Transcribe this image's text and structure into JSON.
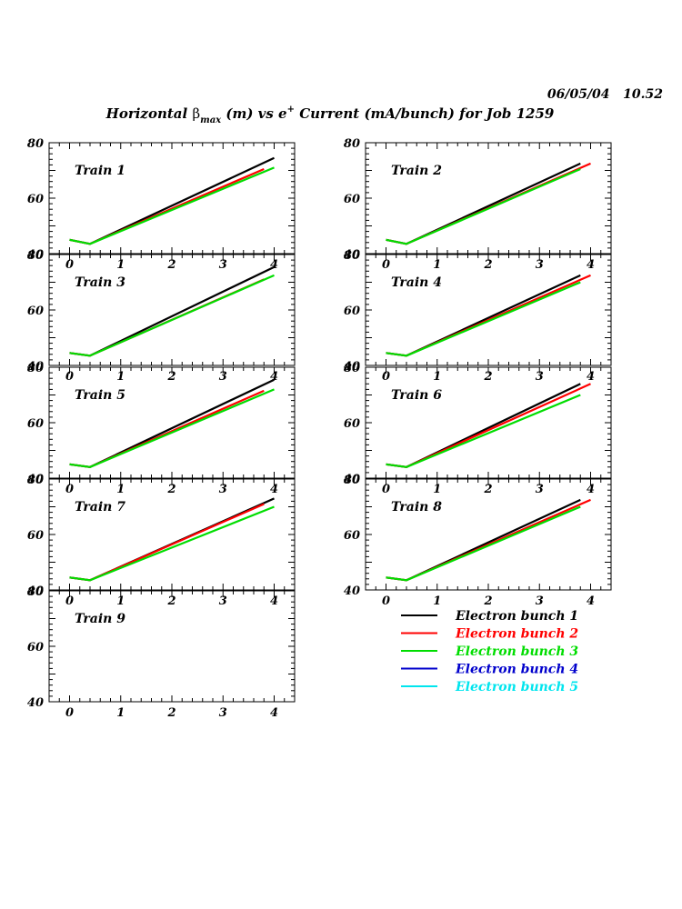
{
  "header": {
    "datetime": "06/05/04   10.52",
    "title_prefix": "Horizontal ",
    "title_beta": "β",
    "title_sub": "max",
    "title_mid": " (m) vs e",
    "title_sup": "+",
    "title_suffix": " Current (mA/bunch) for Job 1259"
  },
  "chart_data": {
    "type": "line",
    "xlim": [
      -0.4,
      4.4
    ],
    "ylim": [
      40,
      80
    ],
    "xticks": [
      "0",
      "1",
      "2",
      "3",
      "4"
    ],
    "yticks": [
      "40",
      "60",
      "80"
    ],
    "grid": false,
    "legend": {
      "placement": "bottom-right",
      "entries": [
        {
          "label": "Electron bunch 1",
          "color": "#000000"
        },
        {
          "label": "Electron bunch 2",
          "color": "#ff0000"
        },
        {
          "label": "Electron bunch 3",
          "color": "#00dd00"
        },
        {
          "label": "Electron bunch 4",
          "color": "#0000cc"
        },
        {
          "label": "Electron bunch 5",
          "color": "#00e5ee"
        }
      ]
    },
    "panels": [
      {
        "label": "Train 1",
        "series": [
          {
            "bunch": 1,
            "x": [
              0.0,
              0.4,
              4.0
            ],
            "y": [
              45.0,
              43.5,
              74.5
            ]
          },
          {
            "bunch": 2,
            "x": [
              0.0,
              0.4,
              3.8
            ],
            "y": [
              45.0,
              43.5,
              70.5
            ]
          },
          {
            "bunch": 3,
            "x": [
              0.0,
              0.4,
              4.0
            ],
            "y": [
              45.0,
              43.5,
              71.0
            ]
          }
        ]
      },
      {
        "label": "Train 2",
        "series": [
          {
            "bunch": 1,
            "x": [
              0.0,
              0.4,
              3.8
            ],
            "y": [
              45.0,
              43.5,
              72.5
            ]
          },
          {
            "bunch": 2,
            "x": [
              0.0,
              0.4,
              4.0
            ],
            "y": [
              45.0,
              43.5,
              72.5
            ]
          },
          {
            "bunch": 3,
            "x": [
              0.0,
              0.4,
              3.8
            ],
            "y": [
              45.0,
              43.5,
              70.5
            ]
          }
        ]
      },
      {
        "label": "Train 3",
        "series": [
          {
            "bunch": 1,
            "x": [
              0.0,
              0.4,
              4.0
            ],
            "y": [
              44.5,
              43.5,
              75.5
            ]
          },
          {
            "bunch": 2,
            "x": [
              0.0,
              0.4,
              3.8
            ],
            "y": [
              44.5,
              43.5,
              71.0
            ]
          },
          {
            "bunch": 3,
            "x": [
              0.0,
              0.4,
              4.0
            ],
            "y": [
              44.5,
              43.5,
              72.5
            ]
          }
        ]
      },
      {
        "label": "Train 4",
        "series": [
          {
            "bunch": 1,
            "x": [
              0.0,
              0.4,
              3.8
            ],
            "y": [
              44.5,
              43.5,
              72.5
            ]
          },
          {
            "bunch": 2,
            "x": [
              0.0,
              0.4,
              4.0
            ],
            "y": [
              44.5,
              43.5,
              72.5
            ]
          },
          {
            "bunch": 3,
            "x": [
              0.0,
              0.4,
              3.8
            ],
            "y": [
              44.5,
              43.5,
              70.0
            ]
          }
        ]
      },
      {
        "label": "Train 5",
        "series": [
          {
            "bunch": 1,
            "x": [
              0.0,
              0.4,
              4.0
            ],
            "y": [
              45.0,
              44.0,
              75.5
            ]
          },
          {
            "bunch": 2,
            "x": [
              0.0,
              0.4,
              3.8
            ],
            "y": [
              45.0,
              44.0,
              71.5
            ]
          },
          {
            "bunch": 3,
            "x": [
              0.0,
              0.4,
              4.0
            ],
            "y": [
              45.0,
              44.0,
              72.0
            ]
          }
        ]
      },
      {
        "label": "Train 6",
        "series": [
          {
            "bunch": 1,
            "x": [
              0.0,
              0.4,
              3.8
            ],
            "y": [
              45.0,
              44.0,
              74.0
            ]
          },
          {
            "bunch": 2,
            "x": [
              0.0,
              0.4,
              4.0
            ],
            "y": [
              45.0,
              44.0,
              74.0
            ]
          },
          {
            "bunch": 3,
            "x": [
              0.0,
              0.4,
              3.8
            ],
            "y": [
              45.0,
              44.0,
              70.0
            ]
          }
        ]
      },
      {
        "label": "Train 7",
        "series": [
          {
            "bunch": 1,
            "x": [
              0.0,
              0.4,
              4.0
            ],
            "y": [
              44.5,
              43.5,
              73.0
            ]
          },
          {
            "bunch": 2,
            "x": [
              0.0,
              0.4,
              3.8
            ],
            "y": [
              44.5,
              43.5,
              71.0
            ]
          },
          {
            "bunch": 3,
            "x": [
              0.0,
              0.4,
              4.0
            ],
            "y": [
              44.5,
              43.5,
              70.0
            ]
          }
        ]
      },
      {
        "label": "Train 8",
        "series": [
          {
            "bunch": 1,
            "x": [
              0.0,
              0.4,
              3.8
            ],
            "y": [
              44.5,
              43.5,
              72.5
            ]
          },
          {
            "bunch": 2,
            "x": [
              0.0,
              0.4,
              4.0
            ],
            "y": [
              44.5,
              43.5,
              72.5
            ]
          },
          {
            "bunch": 3,
            "x": [
              0.0,
              0.4,
              3.8
            ],
            "y": [
              44.5,
              43.5,
              70.0
            ]
          }
        ]
      },
      {
        "label": "Train 9",
        "series": []
      }
    ]
  }
}
